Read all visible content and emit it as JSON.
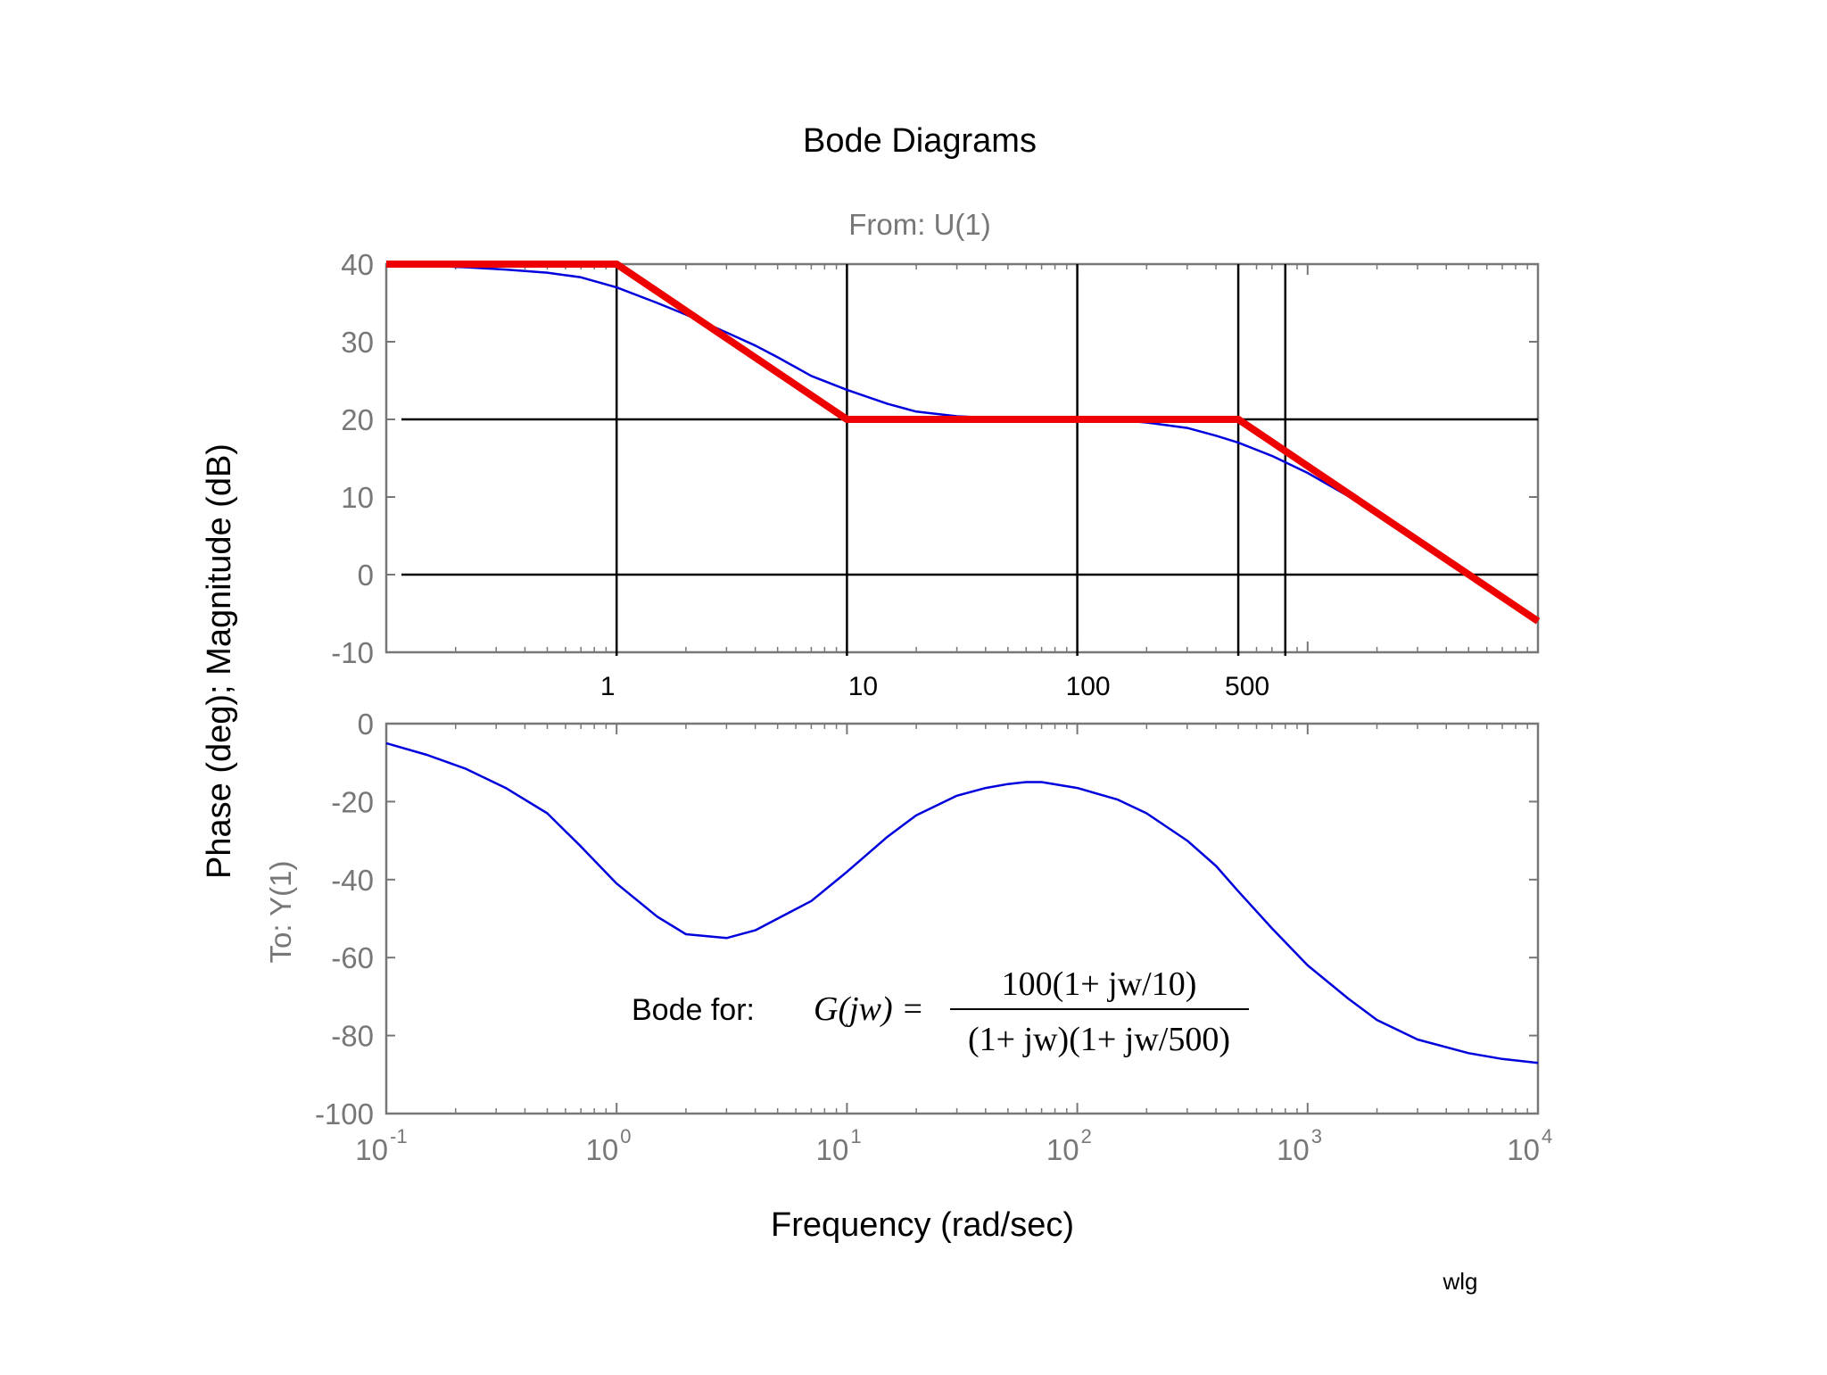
{
  "title": "Bode Diagrams",
  "from_label": "From: U(1)",
  "to_label": "To: Y(1)",
  "ylabel": "Phase (deg); Magnitude (dB)",
  "xlabel": "Frequency (rad/sec)",
  "signature": "wlg",
  "annotation": {
    "prefix": "Bode for:",
    "lhs": "G(jw) =",
    "numerator": "100(1+ jw/10)",
    "denominator": "(1+ jw)(1+ jw/500)"
  },
  "colors": {
    "exact": "#0000dd",
    "asymptote": "#ee0000",
    "axis": "#777777",
    "marker": "#000000"
  },
  "chart_data": [
    {
      "type": "line",
      "panel": "magnitude",
      "xscale": "log",
      "xlim": [
        0.1,
        10000
      ],
      "ylim": [
        -10,
        40
      ],
      "yticks": [
        40,
        30,
        20,
        10,
        0,
        -10
      ],
      "ytick_labels": [
        "40",
        "30",
        "20",
        "10",
        "0",
        "-10"
      ],
      "freq_markers": [
        1,
        10,
        100,
        500,
        800
      ],
      "freq_marker_labels": [
        {
          "x": 1,
          "label": "1"
        },
        {
          "x": 10,
          "label": "10"
        },
        {
          "x": 100,
          "label": "100"
        },
        {
          "x": 500,
          "label": "500"
        }
      ],
      "hlines": [
        20,
        0
      ],
      "series": [
        {
          "role": "exact",
          "x": [
            0.1,
            0.15,
            0.22,
            0.33,
            0.5,
            0.7,
            1,
            1.5,
            2,
            3,
            4,
            5,
            7,
            10,
            15,
            20,
            30,
            50,
            70,
            100,
            150,
            200,
            300,
            400,
            500,
            700,
            1000,
            1500,
            2000,
            3000,
            5000,
            7000,
            10000
          ],
          "y": [
            40,
            39.8,
            39.6,
            39.3,
            38.9,
            38.3,
            37,
            35,
            33.5,
            31.2,
            29.5,
            28,
            25.6,
            23.8,
            22,
            21,
            20.4,
            20.1,
            20,
            20,
            19.9,
            19.6,
            18.9,
            17.9,
            17,
            15.3,
            13.1,
            10.1,
            7.7,
            4.4,
            0.1,
            -2.8,
            -5.9
          ]
        },
        {
          "role": "asymptote",
          "x": [
            0.1,
            1,
            10,
            500,
            10000
          ],
          "y": [
            40,
            40,
            20,
            20,
            -6
          ]
        }
      ]
    },
    {
      "type": "line",
      "panel": "phase",
      "xscale": "log",
      "xlim": [
        0.1,
        10000
      ],
      "ylim": [
        -100,
        0
      ],
      "yticks": [
        0,
        -20,
        -40,
        -60,
        -80,
        -100
      ],
      "ytick_labels": [
        "0",
        "-20",
        "-40",
        "-60",
        "-80",
        "-100"
      ],
      "xticks": [
        0.1,
        1,
        10,
        100,
        1000,
        10000
      ],
      "xtick_labels": [
        {
          "base": "10",
          "exp": "-1"
        },
        {
          "base": "10",
          "exp": "0"
        },
        {
          "base": "10",
          "exp": "1"
        },
        {
          "base": "10",
          "exp": "2"
        },
        {
          "base": "10",
          "exp": "3"
        },
        {
          "base": "10",
          "exp": "4"
        }
      ],
      "series": [
        {
          "role": "exact",
          "x": [
            0.1,
            0.15,
            0.22,
            0.33,
            0.5,
            0.7,
            1,
            1.5,
            2,
            3,
            4,
            5,
            7,
            10,
            15,
            20,
            30,
            40,
            50,
            60,
            70,
            100,
            150,
            200,
            300,
            400,
            500,
            700,
            1000,
            1500,
            2000,
            3000,
            5000,
            7000,
            10000
          ],
          "y": [
            -5,
            -8,
            -11.5,
            -16.5,
            -23,
            -31.5,
            -41,
            -49.5,
            -54,
            -55,
            -53,
            -50,
            -45.5,
            -38,
            -29,
            -23.5,
            -18.5,
            -16.5,
            -15.5,
            -15,
            -15,
            -16.5,
            -19.5,
            -23,
            -30,
            -36.5,
            -43,
            -52.5,
            -62,
            -70.5,
            -76,
            -81,
            -84.5,
            -86,
            -87
          ]
        }
      ]
    }
  ]
}
